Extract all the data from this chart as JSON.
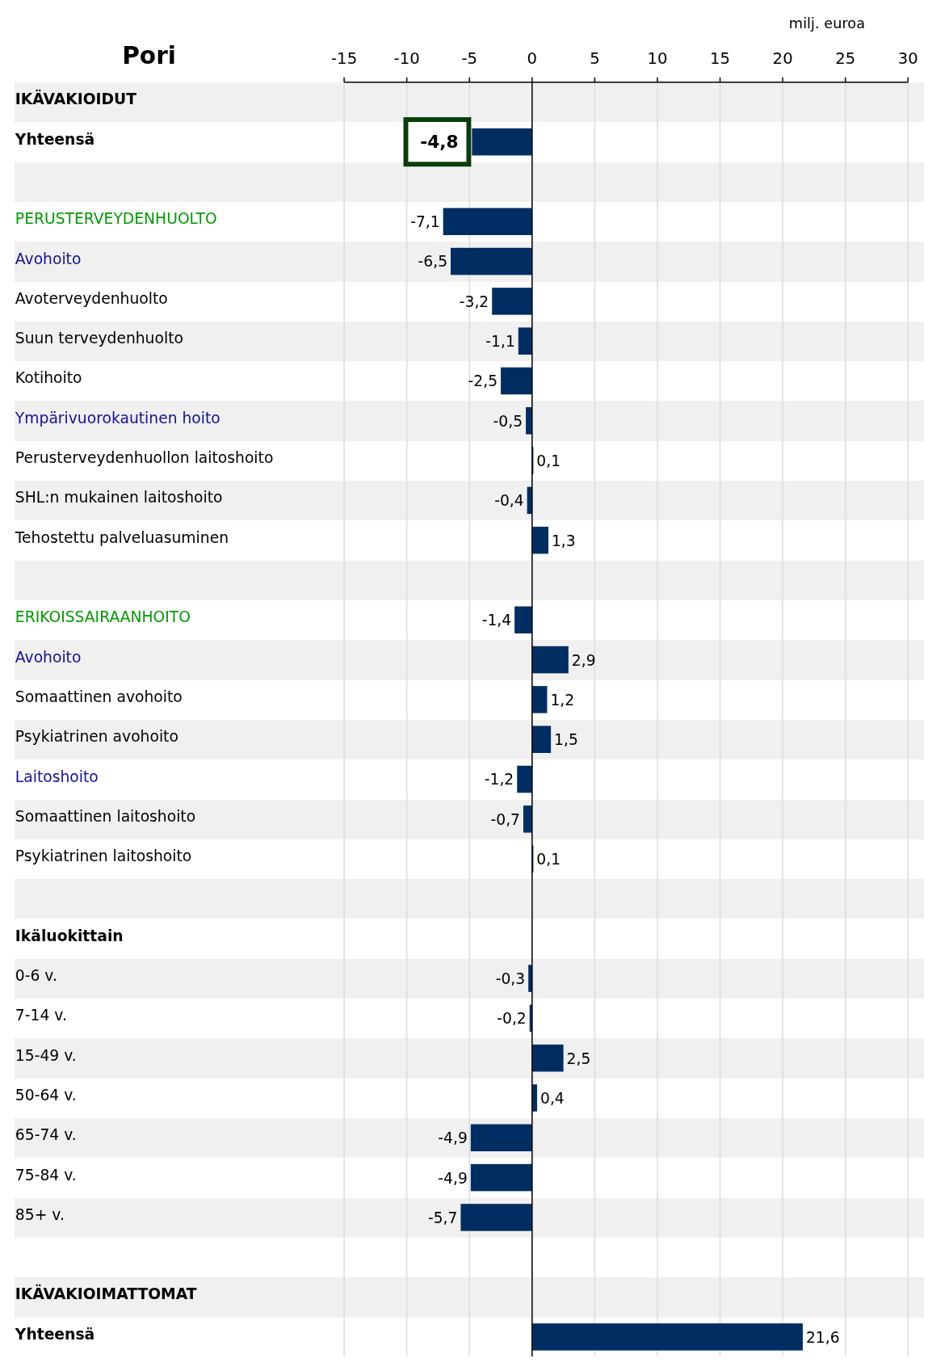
{
  "chart_data": {
    "type": "bar",
    "orientation": "horizontal",
    "title": "Pori",
    "xlabel": "milj. euroa",
    "categories": [
      "IKÄVAKIOIDUT",
      "Yhteensä",
      null,
      "PERUSTERVEYDENHUOLTO",
      "Avohoito",
      "Avoterveydenhuolto",
      "Suun terveydenhuolto",
      "Kotihoito",
      "Ympärivuorokautinen hoito",
      "Perusterveydenhuollon laitoshoito",
      "SHL:n mukainen laitoshoito",
      "Tehostettu palveluasuminen",
      null,
      "ERIKOISSAIRAANHOITO",
      "Avohoito",
      "Somaattinen avohoito",
      "Psykiatrinen avohoito",
      "Laitoshoito",
      "Somaattinen laitoshoito",
      "Psykiatrinen laitoshoito",
      null,
      "Ikäluokittain",
      "0-6 v.",
      "7-14 v.",
      "15-49 v.",
      "50-64 v.",
      "65-74 v.",
      "75-84 v.",
      "85+ v.",
      null,
      "IKÄVAKIOIMATTOMAT",
      "Yhteensä"
    ],
    "values": [
      null,
      -4.8,
      null,
      -7.1,
      -6.5,
      -3.2,
      -1.1,
      -2.5,
      -0.5,
      0.1,
      -0.4,
      1.3,
      null,
      -1.4,
      2.9,
      1.2,
      1.5,
      -1.2,
      -0.7,
      0.1,
      null,
      null,
      -0.3,
      -0.2,
      2.5,
      0.4,
      -4.9,
      -4.9,
      -5.7,
      null,
      null,
      21.6
    ],
    "value_labels": [
      null,
      "-4,8",
      null,
      "-7,1",
      "-6,5",
      "-3,2",
      "-1,1",
      "-2,5",
      "-0,5",
      "0,1",
      "-0,4",
      "1,3",
      null,
      "-1,4",
      "2,9",
      "1,2",
      "1,5",
      "-1,2",
      "-0,7",
      "0,1",
      null,
      null,
      "-0,3",
      "-0,2",
      "2,5",
      "0,4",
      "-4,9",
      "-4,9",
      "-5,7",
      null,
      null,
      "21,6"
    ],
    "color": "#002e62",
    "xlim": [
      -15,
      30
    ],
    "xticks": [
      -15,
      -10,
      -5,
      0,
      5,
      10,
      15,
      20,
      25,
      30
    ],
    "grid": "x"
  }
}
